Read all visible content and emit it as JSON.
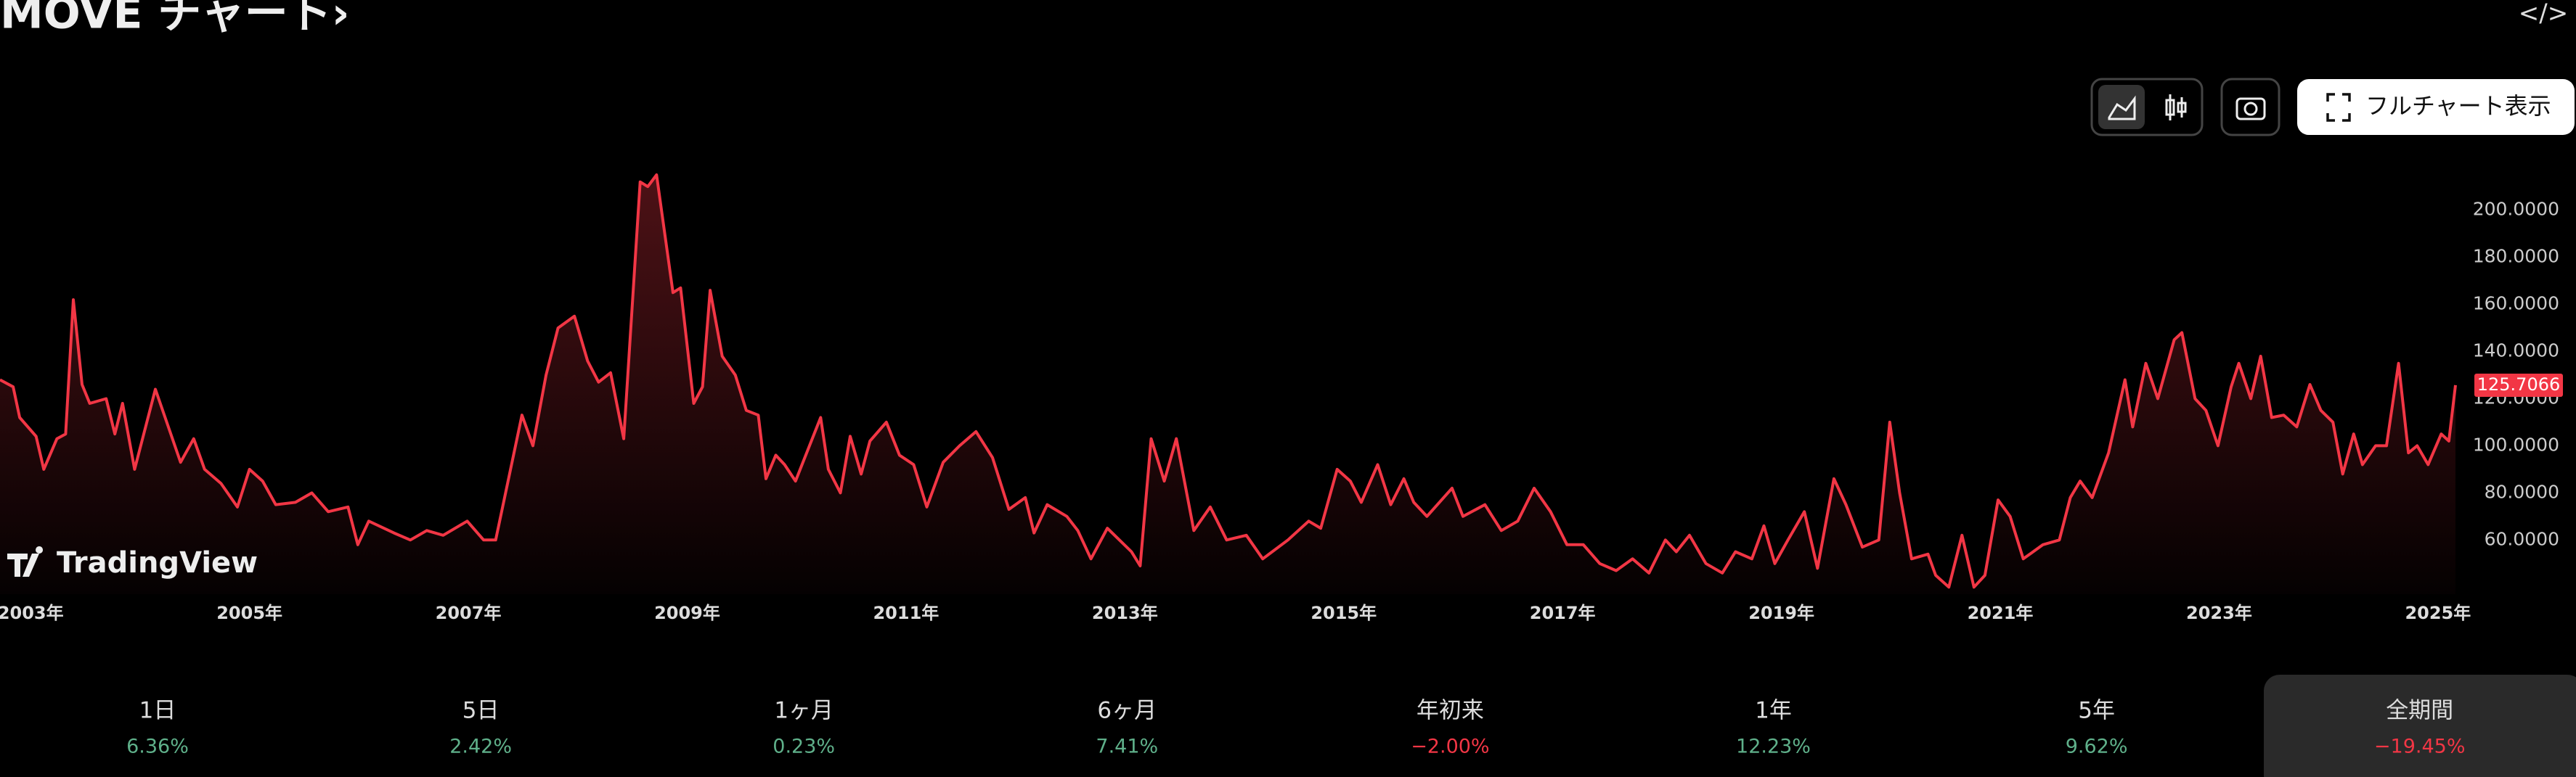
{
  "header": {
    "title": "MOVE チャート›",
    "embed_icon": "</>"
  },
  "toolbar": {
    "full_chart": "フルチャート表示"
  },
  "watermark": "TradingView",
  "chart_data": {
    "type": "line",
    "x": [
      2002.72,
      2002.84,
      2002.9,
      2003.05,
      2003.12,
      2003.24,
      2003.32,
      2003.39,
      2003.47,
      2003.54,
      2003.69,
      2003.77,
      2003.84,
      2003.95,
      2004.14,
      2004.37,
      2004.49,
      2004.59,
      2004.74,
      2004.89,
      2005.0,
      2005.12,
      2005.24,
      2005.42,
      2005.57,
      2005.72,
      2005.9,
      2005.99,
      2006.09,
      2006.32,
      2006.47,
      2006.62,
      2006.77,
      2006.99,
      2007.14,
      2007.25,
      2007.49,
      2007.59,
      2007.71,
      2007.82,
      2007.97,
      2008.09,
      2008.19,
      2008.3,
      2008.42,
      2008.57,
      2008.64,
      2008.72,
      2008.87,
      2008.94,
      2009.06,
      2009.14,
      2009.21,
      2009.32,
      2009.44,
      2009.54,
      2009.65,
      2009.72,
      2009.81,
      2009.89,
      2009.99,
      2010.22,
      2010.29,
      2010.4,
      2010.49,
      2010.59,
      2010.67,
      2010.82,
      2010.94,
      2011.07,
      2011.19,
      2011.34,
      2011.49,
      2011.64,
      2011.79,
      2011.94,
      2012.09,
      2012.17,
      2012.29,
      2012.47,
      2012.57,
      2012.69,
      2012.84,
      2013.06,
      2013.14,
      2013.24,
      2013.36,
      2013.47,
      2013.63,
      2013.78,
      2013.93,
      2014.11,
      2014.26,
      2014.49,
      2014.68,
      2014.79,
      2014.94,
      2015.06,
      2015.16,
      2015.31,
      2015.43,
      2015.55,
      2015.64,
      2015.76,
      2015.99,
      2016.09,
      2016.29,
      2016.44,
      2016.59,
      2016.74,
      2016.89,
      2017.04,
      2017.19,
      2017.34,
      2017.49,
      2017.64,
      2017.79,
      2017.94,
      2018.04,
      2018.16,
      2018.31,
      2018.46,
      2018.58,
      2018.73,
      2018.84,
      2018.94,
      2019.06,
      2019.21,
      2019.33,
      2019.48,
      2019.59,
      2019.74,
      2019.89,
      2019.99,
      2020.08,
      2020.19,
      2020.34,
      2020.41,
      2020.53,
      2020.65,
      2020.76,
      2020.86,
      2020.98,
      2021.09,
      2021.21,
      2021.39,
      2021.54,
      2021.64,
      2021.73,
      2021.84,
      2021.99,
      2022.14,
      2022.21,
      2022.33,
      2022.44,
      2022.59,
      2022.66,
      2022.78,
      2022.88,
      2022.99,
      2023.11,
      2023.18,
      2023.29,
      2023.38,
      2023.48,
      2023.59,
      2023.71,
      2023.83,
      2023.93,
      2024.04,
      2024.13,
      2024.23,
      2024.31,
      2024.43,
      2024.53,
      2024.64,
      2024.73,
      2024.81,
      2024.91,
      2025.03,
      2025.1,
      2025.16
    ],
    "series": [
      {
        "name": "MOVE",
        "color": "#f23645",
        "values": [
          128,
          125,
          112,
          104,
          90,
          103,
          105,
          162,
          126,
          118,
          120,
          105,
          118,
          90,
          124,
          93,
          103,
          90,
          84,
          74,
          90,
          85,
          75,
          76,
          80,
          72,
          74,
          58,
          68,
          63,
          60,
          64,
          62,
          68,
          60,
          60,
          113,
          100,
          130,
          150,
          155,
          136,
          127,
          131,
          103,
          212,
          210,
          215,
          165,
          167,
          118,
          125,
          166,
          138,
          130,
          115,
          113,
          86,
          96,
          92,
          85,
          112,
          90,
          80,
          104,
          88,
          102,
          110,
          96,
          92,
          74,
          93,
          100,
          106,
          95,
          73,
          78,
          63,
          75,
          70,
          64,
          52,
          65,
          55,
          49,
          103,
          85,
          103,
          64,
          74,
          60,
          62,
          52,
          60,
          68,
          65,
          90,
          85,
          76,
          92,
          75,
          86,
          76,
          70,
          82,
          70,
          75,
          64,
          68,
          82,
          72,
          58,
          58,
          50,
          47,
          52,
          46,
          60,
          55,
          62,
          50,
          46,
          55,
          52,
          66,
          50,
          60,
          72,
          48,
          86,
          75,
          57,
          60,
          110,
          80,
          52,
          54,
          45,
          40,
          62,
          40,
          45,
          77,
          70,
          52,
          58,
          60,
          78,
          85,
          78,
          97,
          128,
          108,
          135,
          120,
          145,
          148,
          120,
          115,
          100,
          125,
          135,
          120,
          138,
          112,
          113,
          108,
          126,
          115,
          110,
          88,
          105,
          92,
          100,
          100,
          135,
          97,
          100,
          92,
          105,
          102,
          125.7066
        ]
      }
    ],
    "xlim": [
      2002.72,
      2025.2
    ],
    "ylim": [
      37,
      223
    ],
    "xticks": [
      {
        "value": 2003,
        "label": "2003年"
      },
      {
        "value": 2005,
        "label": "2005年"
      },
      {
        "value": 2007,
        "label": "2007年"
      },
      {
        "value": 2009,
        "label": "2009年"
      },
      {
        "value": 2011,
        "label": "2011年"
      },
      {
        "value": 2013,
        "label": "2013年"
      },
      {
        "value": 2015,
        "label": "2015年"
      },
      {
        "value": 2017,
        "label": "2017年"
      },
      {
        "value": 2019,
        "label": "2019年"
      },
      {
        "value": 2021,
        "label": "2021年"
      },
      {
        "value": 2023,
        "label": "2023年"
      },
      {
        "value": 2025,
        "label": "2025年"
      }
    ],
    "yticks": [
      {
        "value": 60,
        "label": "60.0000"
      },
      {
        "value": 80,
        "label": "80.0000"
      },
      {
        "value": 100,
        "label": "100.0000"
      },
      {
        "value": 120,
        "label": "120.0000"
      },
      {
        "value": 140,
        "label": "140.0000"
      },
      {
        "value": 160,
        "label": "160.0000"
      },
      {
        "value": 180,
        "label": "180.0000"
      },
      {
        "value": 200,
        "label": "200.0000"
      }
    ],
    "grid": false
  },
  "periods": [
    {
      "label": "1日",
      "change": "6.36%",
      "color": "#5fb08a"
    },
    {
      "label": "5日",
      "change": "2.42%",
      "color": "#5fb08a"
    },
    {
      "label": "1ヶ月",
      "change": "0.23%",
      "color": "#5fb08a"
    },
    {
      "label": "6ヶ月",
      "change": "7.41%",
      "color": "#5fb08a"
    },
    {
      "label": "年初来",
      "change": "−2.00%",
      "color": "#f23645"
    },
    {
      "label": "1年",
      "change": "12.23%",
      "color": "#5fb08a"
    },
    {
      "label": "5年",
      "change": "9.62%",
      "color": "#5fb08a"
    },
    {
      "label": "全期間",
      "change": "−19.45%",
      "color": "#f23645",
      "selected": true
    }
  ]
}
